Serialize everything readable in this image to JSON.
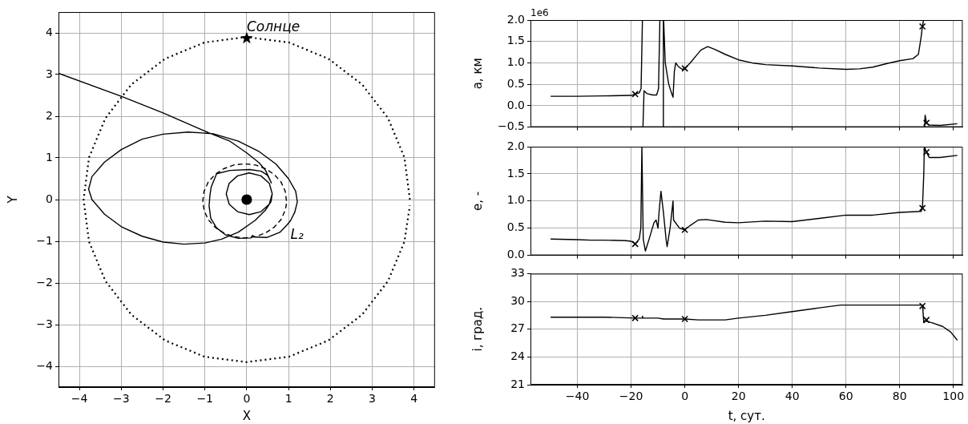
{
  "chart_data": [
    {
      "type": "line",
      "xlabel": "X",
      "ylabel": "Y",
      "xlim": [
        -4.5,
        4.5
      ],
      "ylim": [
        -4.5,
        4.5
      ],
      "xticks": [
        {
          "value": -4,
          "label": "−4"
        },
        {
          "value": -3,
          "label": "−3"
        },
        {
          "value": -2,
          "label": "−2"
        },
        {
          "value": -1,
          "label": "−1"
        },
        0,
        1,
        2,
        3,
        4
      ],
      "yticks": [
        {
          "value": -4,
          "label": "−4"
        },
        {
          "value": -3,
          "label": "−3"
        },
        {
          "value": -2,
          "label": "−2"
        },
        {
          "value": -1,
          "label": "−1"
        },
        0,
        1,
        2,
        3,
        4
      ],
      "grid": true,
      "legend": false,
      "annotations": [
        {
          "text": "Солнце",
          "x": 0,
          "y": 3.87
        },
        {
          "text": "L₂",
          "x": 0.97,
          "y": -0.6
        }
      ],
      "series": [
        {
          "type": "line",
          "color": "#000000",
          "line_style": "solid",
          "x": [
            0.61,
            0.54,
            0.34,
            0.06,
            -0.22,
            -0.42,
            -0.49,
            -0.42,
            -0.22,
            0.06,
            0.34,
            0.54,
            0.61,
            0.58,
            0.45,
            0.2,
            -0.2,
            -0.6,
            -1.0,
            -1.5,
            -2.0,
            -2.5,
            -3.0,
            -3.4,
            -3.7,
            -3.78,
            -3.7,
            -3.4,
            -3.0,
            -2.5,
            -2.0,
            -1.4,
            -0.8,
            -0.2,
            0.3,
            0.7,
            1.0,
            1.17,
            1.21,
            1.15,
            1.05,
            0.97,
            0.8,
            0.48,
            0.2,
            0.14,
            0.1,
            -0.2,
            -0.5,
            -0.72,
            -0.86,
            -0.9,
            -0.88,
            -0.85,
            -0.72,
            -0.4,
            0.07,
            0.35,
            0.5,
            0.59,
            0.45,
            0.3,
            0,
            -0.4,
            -0.9,
            -2.0,
            -3.0,
            -4.5
          ],
          "values": [
            0.14,
            0.39,
            0.57,
            0.64,
            0.57,
            0.39,
            0.14,
            -0.11,
            -0.29,
            -0.36,
            -0.29,
            -0.11,
            0.14,
            -0.05,
            -0.25,
            -0.5,
            -0.78,
            -0.95,
            -1.04,
            -1.07,
            -1.02,
            -0.88,
            -0.65,
            -0.35,
            0.0,
            0.25,
            0.55,
            0.9,
            1.2,
            1.45,
            1.57,
            1.62,
            1.58,
            1.4,
            1.15,
            0.85,
            0.5,
            0.2,
            -0.05,
            -0.3,
            -0.5,
            -0.6,
            -0.78,
            -0.91,
            -0.9,
            -0.86,
            -0.92,
            -0.93,
            -0.85,
            -0.68,
            -0.45,
            -0.15,
            0.1,
            0.3,
            0.62,
            0.7,
            0.72,
            0.68,
            0.58,
            0.4,
            0.7,
            0.88,
            1.12,
            1.4,
            1.6,
            2.08,
            2.48,
            3.03
          ]
        },
        {
          "type": "line",
          "color": "#000000",
          "line_style": "dotted",
          "x": [
            3.9,
            3.77,
            3.38,
            2.76,
            1.95,
            1.01,
            0,
            -1.01,
            -1.95,
            -2.76,
            -3.38,
            -3.77,
            -3.9,
            -3.77,
            -3.38,
            -2.76,
            -1.95,
            -1.01,
            0,
            1.01,
            1.95,
            2.76,
            3.38,
            3.77,
            3.9
          ],
          "values": [
            0,
            1.01,
            1.95,
            2.76,
            3.38,
            3.77,
            3.9,
            3.77,
            3.38,
            2.76,
            1.95,
            1.01,
            0,
            -1.01,
            -1.95,
            -2.76,
            -3.38,
            -3.77,
            -3.9,
            -3.77,
            -3.38,
            -2.76,
            -1.95,
            -1.01,
            -0.14
          ]
        },
        {
          "type": "line",
          "color": "#000000",
          "line_style": "dashed",
          "x": [
            0.95,
            0.92,
            0.82,
            0.66,
            0.45,
            0.21,
            -0.05,
            -0.31,
            -0.55,
            -0.76,
            -0.92,
            -1.02,
            -1.05,
            -1.02,
            -0.92,
            -0.76,
            -0.55,
            -0.31,
            -0.05,
            0.21,
            0.45,
            0.66,
            0.82,
            0.92,
            0.95
          ],
          "values": [
            -0.03,
            0.2,
            0.42,
            0.6,
            0.74,
            0.83,
            0.86,
            0.83,
            0.74,
            0.6,
            0.42,
            0.2,
            -0.03,
            -0.26,
            -0.48,
            -0.66,
            -0.8,
            -0.89,
            -0.92,
            -0.89,
            -0.8,
            -0.66,
            -0.48,
            -0.26,
            -0.1
          ]
        },
        {
          "type": "scatter",
          "color": "#000000",
          "marker": "star",
          "x": [
            0
          ],
          "values": [
            3.87
          ]
        },
        {
          "type": "scatter",
          "color": "#000000",
          "marker": "circle",
          "x": [
            0
          ],
          "values": [
            0
          ]
        }
      ]
    },
    {
      "type": "line",
      "ylabel": "a, км",
      "xlim": [
        -57.5,
        103.5
      ],
      "ylim": [
        -0.5,
        2.0
      ],
      "tick_labels": "y",
      "xticks": [
        -40,
        -20,
        0,
        20,
        40,
        60,
        80,
        100
      ],
      "yticks": [
        {
          "value": -0.5,
          "label": "−0.5"
        },
        {
          "value": 0,
          "label": "0.0"
        },
        0.5,
        {
          "value": 1,
          "label": "1.0"
        },
        1.5,
        {
          "value": 2,
          "label": "2.0"
        }
      ],
      "grid": true,
      "legend": false,
      "annotations": [
        "1e6"
      ],
      "series": [
        {
          "type": "line",
          "color": "#000000",
          "line_style": "solid",
          "x": [
            -50,
            -40,
            -30,
            -20,
            -18.5,
            -17,
            -16.3,
            -15.8,
            -15.7,
            -15.6,
            -15.2,
            -14,
            -12,
            -10.5,
            -9.8,
            -9.3,
            -9.2,
            -8.1,
            -8.0,
            -7.95,
            -7.9,
            -7.3,
            -6,
            -5,
            -4.4,
            -3.9,
            -3.4,
            -2.5,
            -1,
            0,
            2,
            4,
            6,
            8.5,
            11,
            15,
            20,
            25,
            30,
            40,
            50,
            60,
            65,
            70,
            75,
            80,
            85,
            87,
            88,
            88.5,
            88.9,
            89.1,
            89.3,
            89.5,
            90,
            91,
            95,
            101.5
          ],
          "values": [
            0.22,
            0.22,
            0.23,
            0.24,
            0.27,
            0.3,
            0.4,
            2.0,
            null,
            -0.5,
            0.35,
            0.28,
            0.25,
            0.25,
            0.4,
            2.0,
            null,
            -0.5,
            2.0,
            null,
            2.0,
            1.0,
            0.5,
            0.3,
            0.2,
            0.8,
            1.0,
            0.92,
            0.85,
            0.87,
            1.0,
            1.15,
            1.3,
            1.38,
            1.32,
            1.2,
            1.07,
            1.0,
            0.96,
            0.93,
            0.88,
            0.85,
            0.86,
            0.9,
            0.98,
            1.05,
            1.1,
            1.2,
            1.6,
            1.85,
            2.0,
            null,
            -0.5,
            -0.22,
            -0.4,
            -0.45,
            -0.46,
            -0.42
          ]
        },
        {
          "type": "scatter",
          "color": "#000000",
          "marker": "cross",
          "x": [
            -18.5,
            0,
            88.5,
            90
          ],
          "values": [
            0.27,
            0.87,
            1.85,
            -0.4
          ]
        }
      ]
    },
    {
      "type": "line",
      "ylabel": "e, -",
      "xlim": [
        -57.5,
        103.5
      ],
      "ylim": [
        0,
        2.0
      ],
      "tick_labels": "y",
      "xticks": [
        -40,
        -20,
        0,
        20,
        40,
        60,
        80,
        100
      ],
      "yticks": [
        {
          "value": 0,
          "label": "0.0"
        },
        0.5,
        {
          "value": 1,
          "label": "1.0"
        },
        1.5,
        {
          "value": 2,
          "label": "2.0"
        }
      ],
      "grid": true,
      "legend": false,
      "series": [
        {
          "type": "line",
          "color": "#000000",
          "line_style": "solid",
          "x": [
            -50,
            -40,
            -35,
            -30,
            -22,
            -20,
            -18.5,
            -17,
            -16.4,
            -16.0,
            -15.5,
            -14.7,
            -13,
            -11.5,
            -10.7,
            -10,
            -9.6,
            -8.9,
            -8,
            -7,
            -6.6,
            -5.5,
            -4.4,
            -4.2,
            -2,
            0,
            2,
            5,
            8,
            15,
            20,
            30,
            40,
            50,
            60,
            70,
            80,
            88,
            88.5,
            89,
            89.2,
            90,
            91,
            95,
            101.5
          ],
          "values": [
            0.3,
            0.29,
            0.28,
            0.28,
            0.27,
            0.26,
            0.21,
            0.3,
            0.5,
            2.0,
            0.3,
            0.08,
            0.35,
            0.6,
            0.65,
            0.5,
            0.8,
            1.18,
            0.8,
            0.3,
            0.16,
            0.5,
            1.0,
            0.65,
            0.5,
            0.47,
            0.55,
            0.65,
            0.66,
            0.61,
            0.6,
            0.63,
            0.62,
            0.68,
            0.74,
            0.74,
            0.79,
            0.81,
            0.87,
            1.5,
            2.0,
            1.9,
            1.8,
            1.8,
            1.84
          ]
        },
        {
          "type": "scatter",
          "color": "#000000",
          "marker": "cross",
          "x": [
            -18.5,
            0,
            88.5,
            90
          ],
          "values": [
            0.21,
            0.47,
            0.87,
            1.9
          ]
        }
      ]
    },
    {
      "type": "line",
      "xlabel": "t, сут.",
      "ylabel": "i, град.",
      "xlim": [
        -57.5,
        103.5
      ],
      "ylim": [
        21,
        33
      ],
      "xticks": [
        {
          "value": -40,
          "label": "−40"
        },
        {
          "value": -20,
          "label": "−20"
        },
        0,
        20,
        40,
        60,
        80,
        100
      ],
      "yticks": [
        21,
        24,
        27,
        30,
        33
      ],
      "grid": true,
      "legend": false,
      "series": [
        {
          "type": "line",
          "color": "#000000",
          "line_style": "solid",
          "x": [
            -50,
            -30,
            -18.5,
            -16,
            -15.8,
            -15.6,
            -10,
            -8,
            -4,
            0,
            5,
            10,
            15,
            20,
            30,
            40,
            50,
            58,
            70,
            80,
            88.5,
            88.7,
            89,
            89.3,
            92,
            96,
            99,
            101.5
          ],
          "values": [
            28.3,
            28.3,
            28.2,
            28.2,
            28.4,
            28.2,
            28.2,
            28.1,
            28.1,
            28.1,
            28.0,
            28.0,
            28.0,
            28.2,
            28.5,
            28.9,
            29.3,
            29.6,
            29.6,
            29.6,
            29.6,
            29.0,
            27.7,
            27.9,
            27.7,
            27.3,
            26.7,
            25.8
          ]
        },
        {
          "type": "scatter",
          "color": "#000000",
          "marker": "cross",
          "x": [
            -18.5,
            0,
            88.5,
            90
          ],
          "values": [
            28.2,
            28.1,
            29.5,
            28.0
          ]
        }
      ]
    }
  ]
}
